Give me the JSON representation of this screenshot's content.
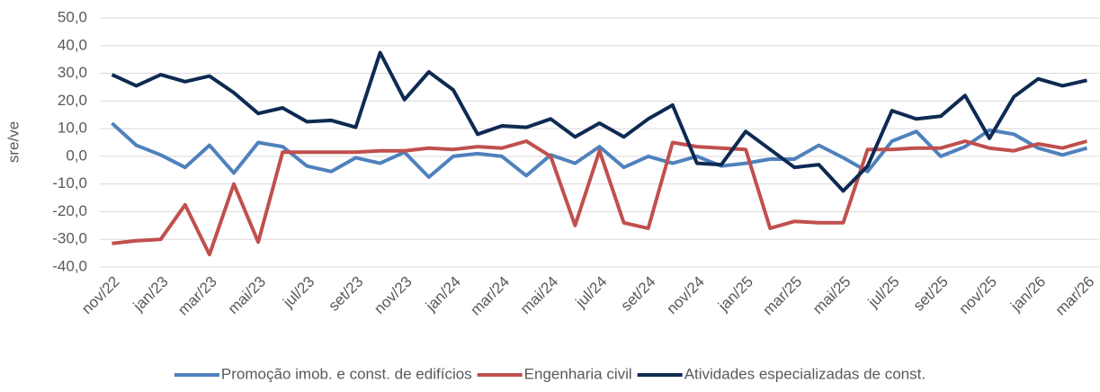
{
  "chart_data": {
    "type": "line",
    "y_label": "sre/ve",
    "categories": [
      "nov/22",
      null,
      "jan/23",
      null,
      "mar/23",
      null,
      "mai/23",
      null,
      "jul/23",
      null,
      "set/23",
      null,
      "nov/23",
      null,
      "jan/24",
      null,
      "mar/24",
      null,
      "mai/24",
      null,
      "jul/24",
      null,
      "set/24",
      null,
      "nov/24",
      null,
      "jan/25",
      null,
      "mar/25",
      null,
      "mai/25",
      null,
      "jul/25",
      null,
      "set/25",
      null,
      "nov/25",
      null,
      "jan/26",
      null,
      "mar/26"
    ],
    "series": [
      {
        "name": "Promoção imob. e const. de edifícios",
        "color": "#4f81bd",
        "values": [
          12,
          4,
          0.5,
          -4,
          4,
          -6,
          5,
          3.5,
          -3.5,
          -5.5,
          -0.5,
          -2.5,
          1.5,
          -7.5,
          0,
          1,
          0,
          -7,
          0.5,
          -2.5,
          3.5,
          -4,
          0,
          -2.5,
          0,
          -3.5,
          -2.5,
          -1,
          -1,
          4,
          -0.5,
          -5.5,
          5.5,
          9,
          0,
          3.5,
          9.5,
          8,
          3,
          0.5,
          3
        ]
      },
      {
        "name": "Engenharia civil",
        "color": "#c0504d",
        "values": [
          -31.5,
          -30.5,
          -30,
          -17.5,
          -35.5,
          -10,
          -31,
          1.5,
          1.5,
          1.5,
          1.5,
          2,
          2,
          3,
          2.5,
          3.5,
          3,
          5.5,
          0,
          -25,
          2,
          -24,
          -26,
          5,
          3.5,
          3,
          2.5,
          -26,
          -23.5,
          -24,
          -24,
          2.5,
          2.5,
          3,
          3,
          5.5,
          3,
          2,
          4.5,
          3,
          5.5
        ]
      },
      {
        "name": "Atividades especializadas de const.",
        "color": "#0e2a52",
        "values": [
          29.5,
          25.5,
          29.5,
          27,
          29,
          23,
          15.5,
          17.5,
          12.5,
          13,
          10.5,
          37.5,
          20.5,
          30.5,
          24,
          8,
          11,
          10.5,
          13.5,
          7,
          12,
          7,
          13.5,
          18.5,
          -2.5,
          -3,
          9,
          2.5,
          -4,
          -3,
          -12.5,
          -3.5,
          16.5,
          13.5,
          14.5,
          22,
          6.5,
          21.5,
          28,
          25.5,
          27.5
        ]
      }
    ],
    "ylim": [
      -40,
      50
    ],
    "yticks": [
      {
        "value": -40,
        "label": "-40,0"
      },
      {
        "value": -30,
        "label": "-30,0"
      },
      {
        "value": -20,
        "label": "-20,0"
      },
      {
        "value": -10,
        "label": "-10,0"
      },
      {
        "value": 0,
        "label": "0,0"
      },
      {
        "value": 10,
        "label": "10,0"
      },
      {
        "value": 20,
        "label": "20,0"
      },
      {
        "value": 30,
        "label": "30,0"
      },
      {
        "value": 40,
        "label": "40,0"
      },
      {
        "value": 50,
        "label": "50,0"
      }
    ],
    "grid": true,
    "legend": "bottom"
  }
}
